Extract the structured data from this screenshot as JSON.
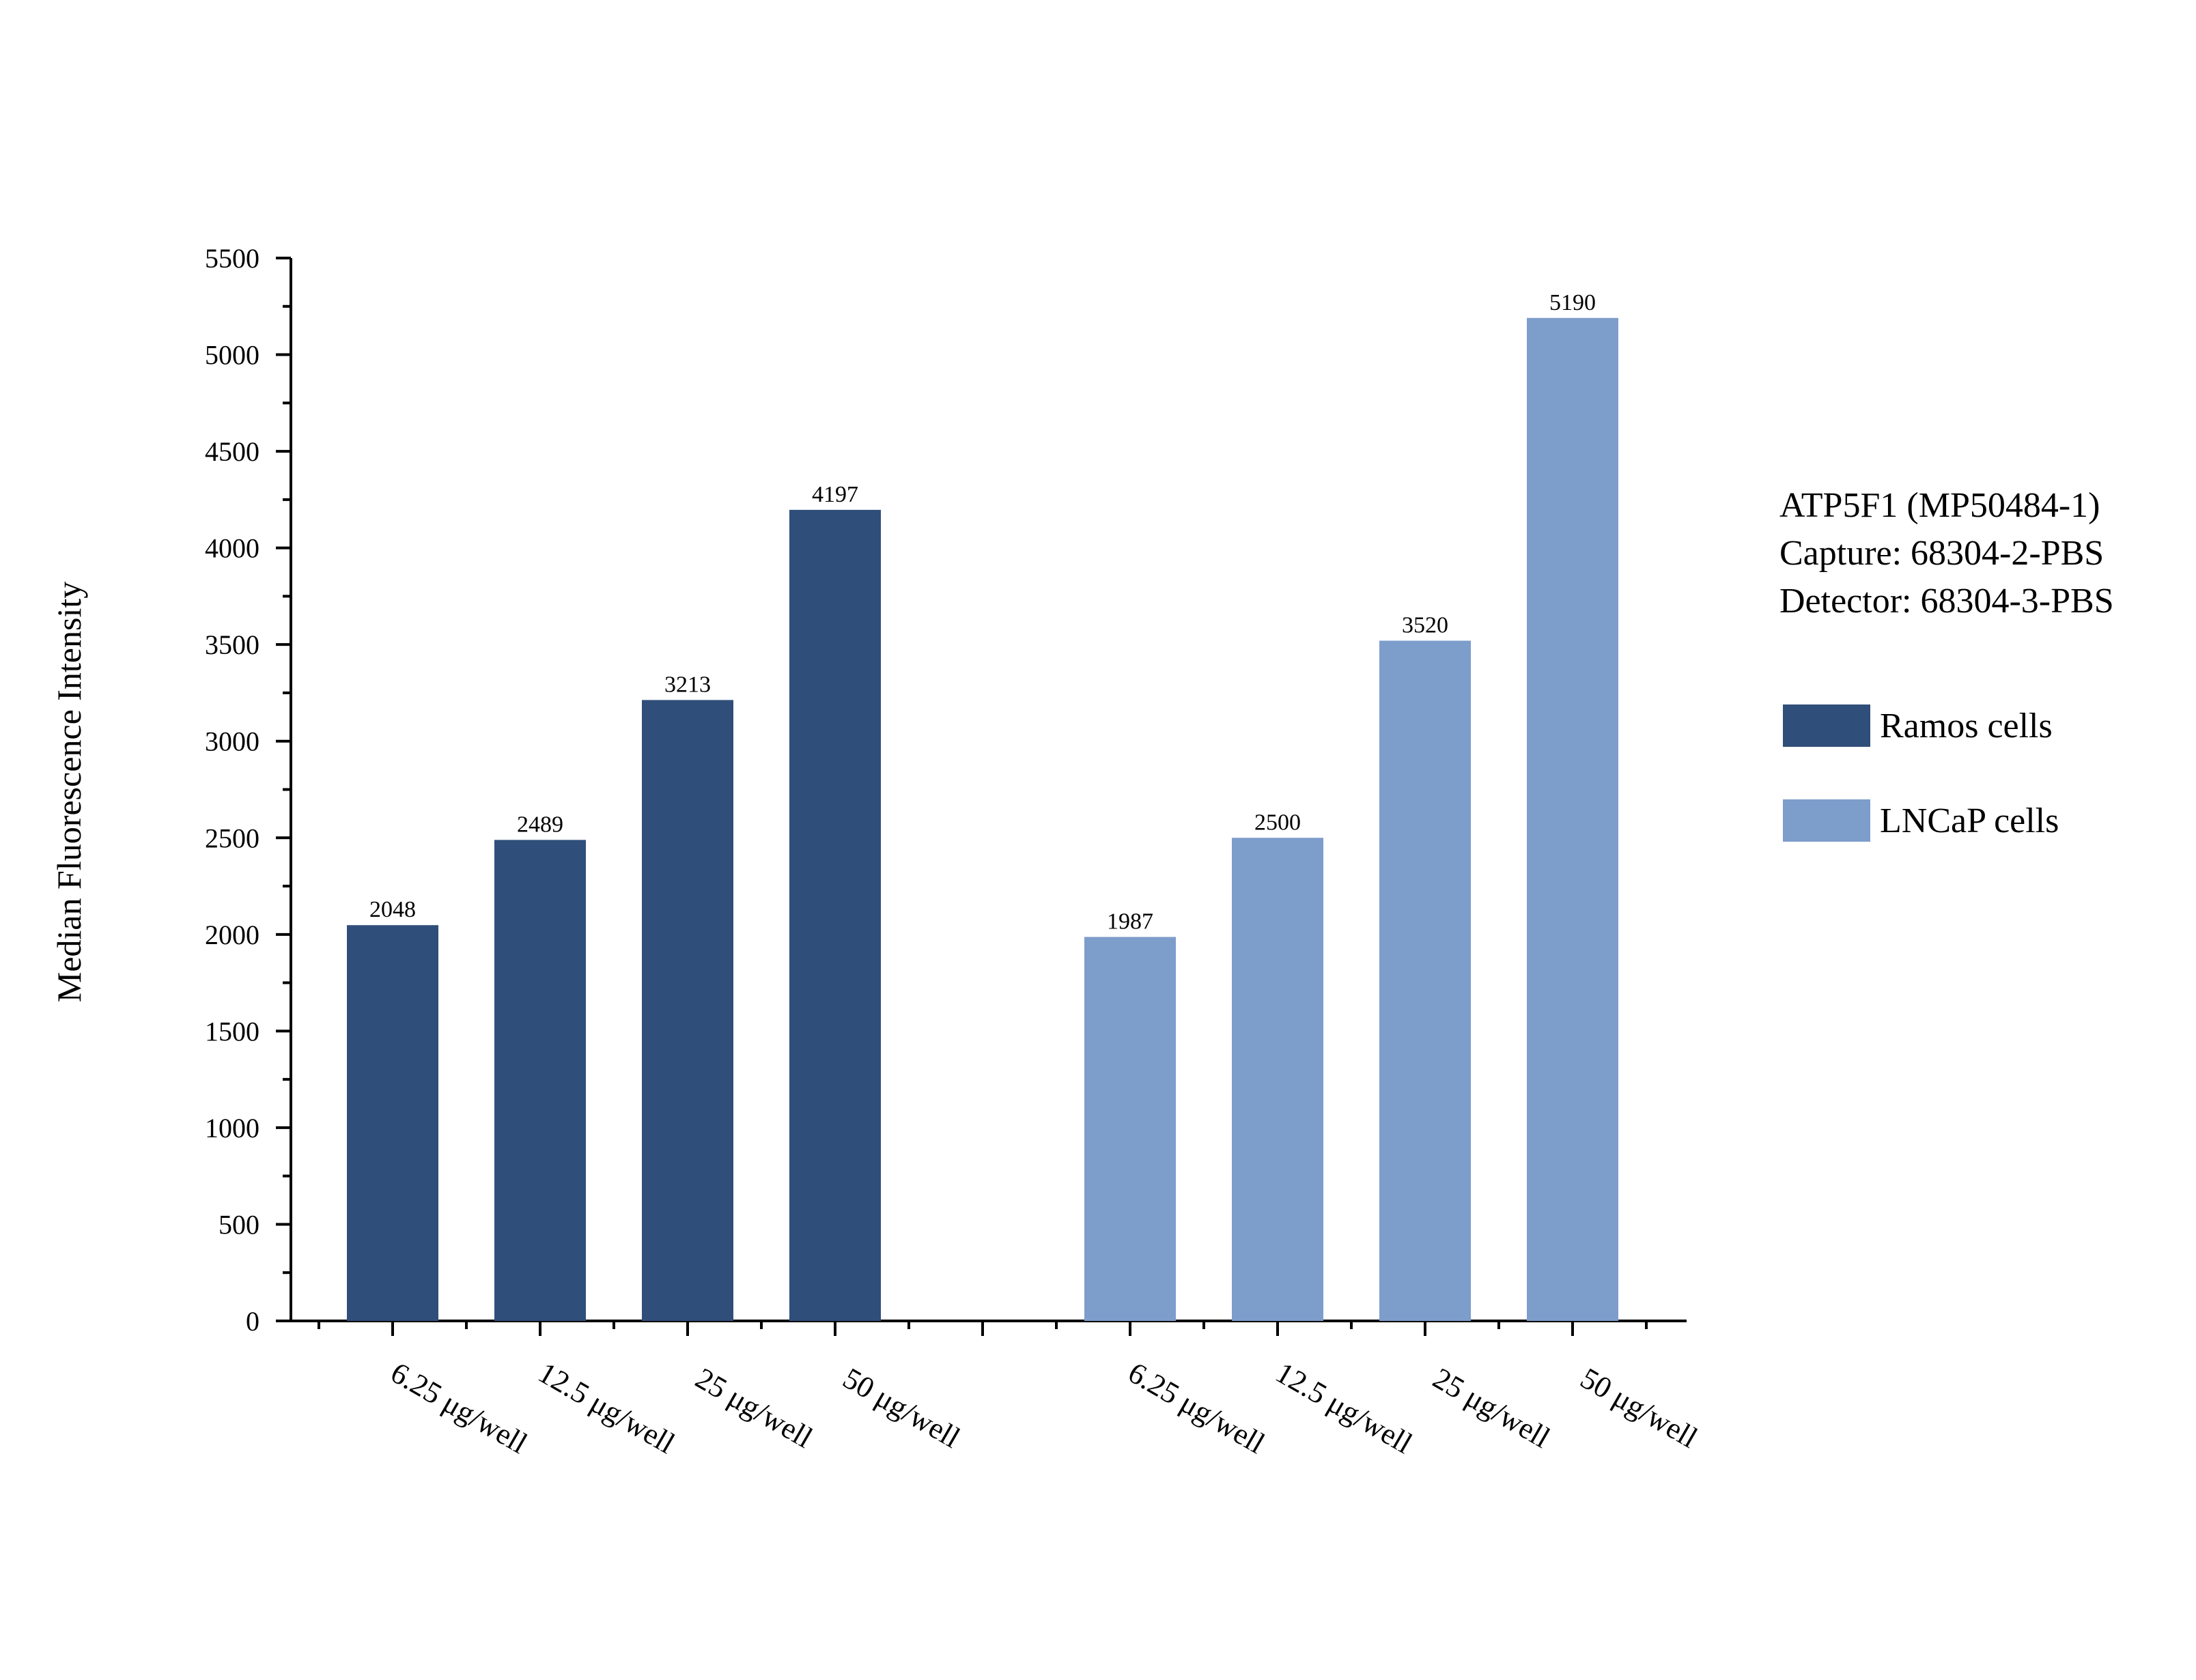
{
  "chart_data": {
    "type": "bar",
    "ylabel": "Median Fluorescence Intensity",
    "ylim": [
      0,
      5500
    ],
    "yticks": [
      0,
      500,
      1000,
      1500,
      2000,
      2500,
      3000,
      3500,
      4000,
      4500,
      5000,
      5500
    ],
    "grid": false,
    "legend_position": "right",
    "annotation_lines": [
      "ATP5F1 (MP50484-1)",
      "Capture: 68304-2-PBS",
      "Detector: 68304-3-PBS"
    ],
    "series": [
      {
        "name": "Ramos cells",
        "color": "#2F4E79",
        "categories": [
          "6.25 μg/well",
          "12.5 μg/well",
          "25 μg/well",
          "50 μg/well"
        ],
        "values": [
          2048,
          2489,
          3213,
          4197
        ],
        "labels": [
          "2048",
          "2489",
          "3213",
          "4197"
        ]
      },
      {
        "name": "LNCaP cells",
        "color": "#7D9DCB",
        "categories": [
          "6.25 μg/well",
          "12.5 μg/well",
          "25 μg/well",
          "50 μg/well"
        ],
        "values": [
          1987,
          2500,
          3520,
          5190
        ],
        "labels": [
          "1987",
          "2500",
          "3520",
          "5190"
        ]
      }
    ]
  }
}
